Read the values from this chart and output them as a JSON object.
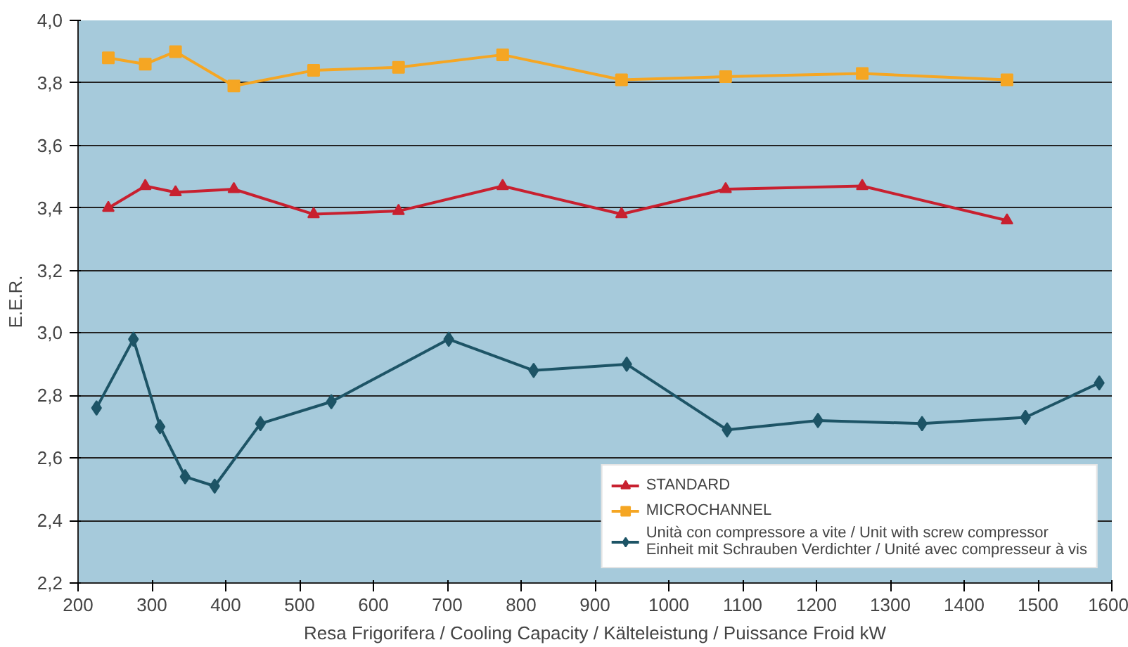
{
  "chart_data": {
    "type": "line",
    "xlabel": "Resa Frigorifera / Cooling Capacity / Kälteleistung / Puissance Froid kW",
    "ylabel": "E.E.R.",
    "xlim": [
      200,
      1600
    ],
    "xticks": [
      200,
      300,
      400,
      500,
      600,
      700,
      800,
      900,
      1000,
      1100,
      1200,
      1300,
      1400,
      1500,
      1600
    ],
    "ylim": [
      2.2,
      4.0
    ],
    "yticks": [
      {
        "value": 2.2,
        "label": "2,2"
      },
      {
        "value": 2.4,
        "label": "2,4"
      },
      {
        "value": 2.6,
        "label": "2,6"
      },
      {
        "value": 2.8,
        "label": "2,8"
      },
      {
        "value": 3.0,
        "label": "3,0"
      },
      {
        "value": 3.2,
        "label": "3,2"
      },
      {
        "value": 3.4,
        "label": "3,4"
      },
      {
        "value": 3.6,
        "label": "3,6"
      },
      {
        "value": 3.8,
        "label": "3,8"
      },
      {
        "value": 4.0,
        "label": "4,0"
      }
    ],
    "grid": "y",
    "legend": "bottom right",
    "line_style": "solid",
    "series": [
      {
        "name": "STANDARD",
        "color": "#c8202f",
        "marker": "triangle",
        "x": [
          241,
          291,
          332,
          411,
          519,
          634,
          775,
          936,
          1077,
          1262,
          1458
        ],
        "values": [
          3.4,
          3.47,
          3.45,
          3.46,
          3.38,
          3.39,
          3.47,
          3.38,
          3.46,
          3.47,
          3.36
        ]
      },
      {
        "name": "MICROCHANNEL",
        "color": "#f5a623",
        "marker": "square",
        "x": [
          241,
          291,
          332,
          411,
          519,
          634,
          775,
          936,
          1077,
          1262,
          1458
        ],
        "values": [
          3.88,
          3.86,
          3.9,
          3.79,
          3.84,
          3.85,
          3.89,
          3.81,
          3.82,
          3.83,
          3.81
        ]
      },
      {
        "name": "Unità con compressore a vite / Unit with screw compressor\nEinheit mit Schrauben Verdichter / Unité avec compresseur à vis",
        "color": "#1d5466",
        "marker": "diamond",
        "x": [
          225,
          275,
          311,
          345,
          385,
          447,
          543,
          702,
          817,
          943,
          1079,
          1202,
          1343,
          1483,
          1583
        ],
        "values": [
          2.76,
          2.98,
          2.7,
          2.54,
          2.51,
          2.71,
          2.78,
          2.98,
          2.88,
          2.9,
          2.69,
          2.72,
          2.71,
          2.73,
          2.84
        ]
      }
    ]
  }
}
